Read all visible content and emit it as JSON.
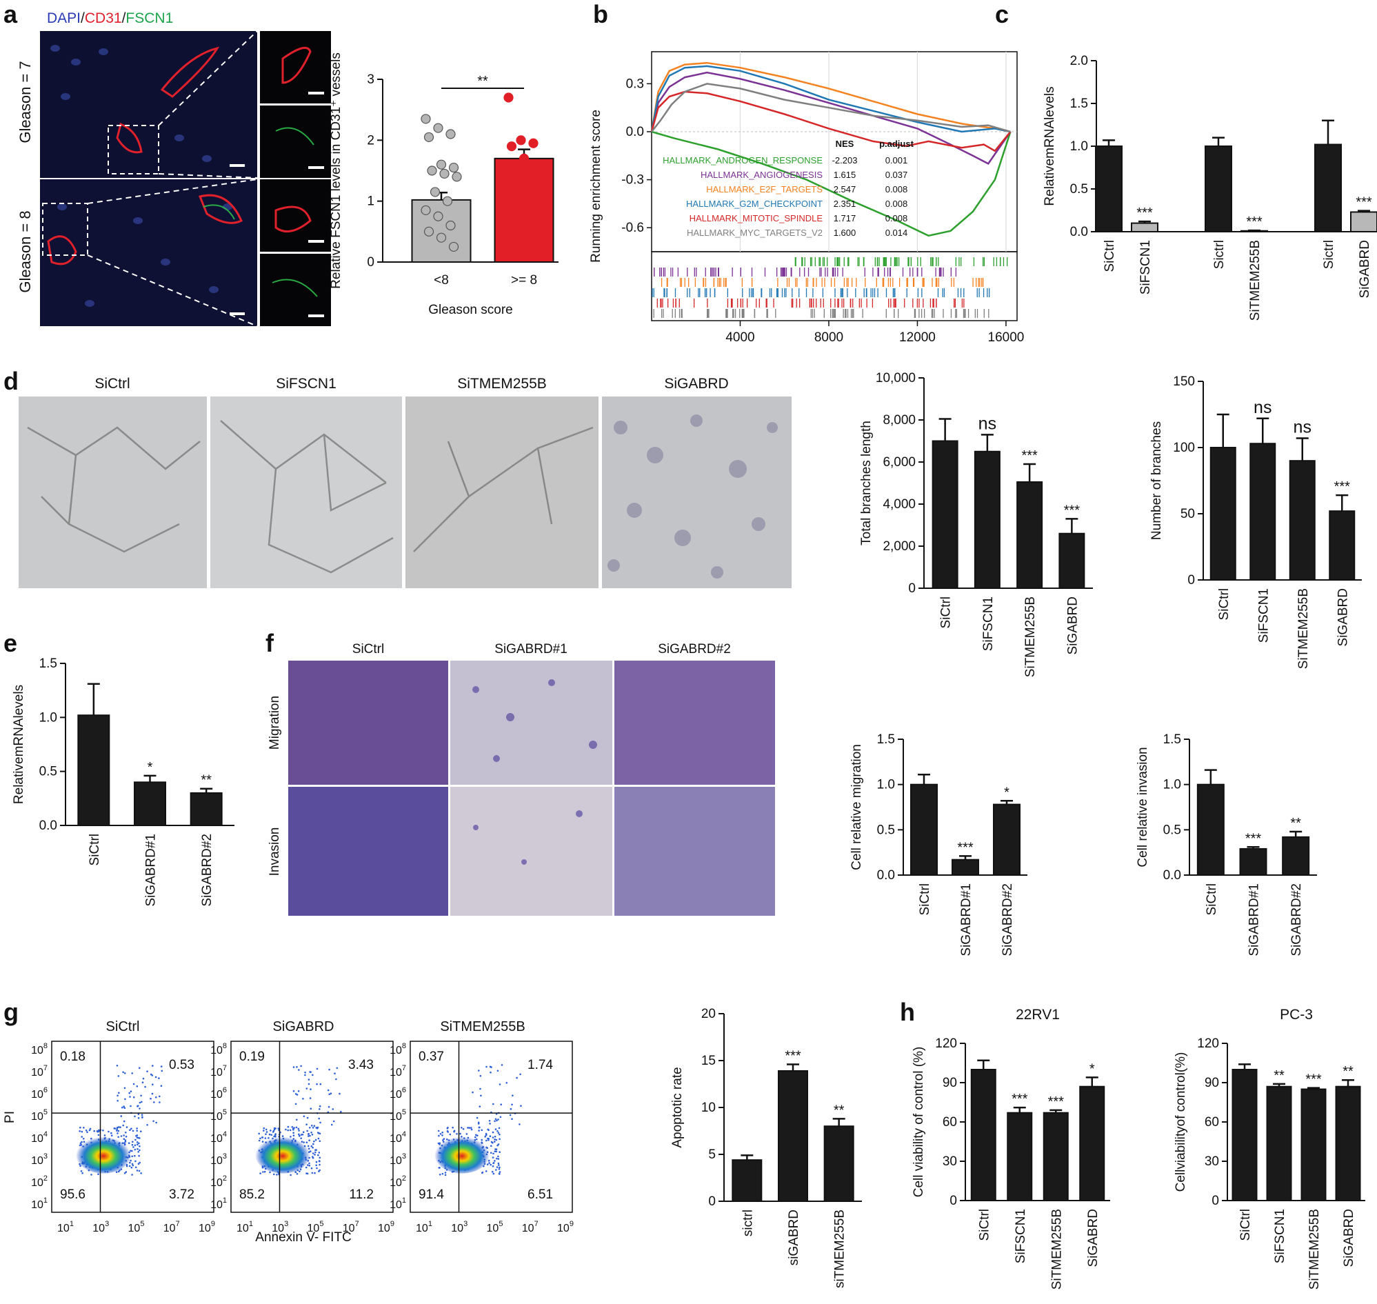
{
  "panel_labels": [
    "a",
    "b",
    "c",
    "d",
    "e",
    "f",
    "g",
    "h"
  ],
  "micro": {
    "stain_legend": [
      {
        "text": "DAPI",
        "color": "#2b3bb8"
      },
      {
        "text": "/",
        "color": "#222222"
      },
      {
        "text": "CD31",
        "color": "#e0202a"
      },
      {
        "text": "/",
        "color": "#222222"
      },
      {
        "text": "FSCN1",
        "color": "#1aa34a"
      }
    ],
    "row_labels": [
      "Gleason = 7",
      "Gleason = 8"
    ],
    "tube_labels": [
      "SiCtrl",
      "SiFSCN1",
      "SiTMEM255B",
      "SiGABRD"
    ],
    "transwell_cols": [
      "SiCtrl",
      "SiGABRD#1",
      "SiGABRD#2"
    ],
    "transwell_rows": [
      "Migration",
      "Invasion"
    ],
    "flow_titles": [
      "SiCtrl",
      "SiGABRD",
      "SiTMEM255B"
    ],
    "flow_quadrants": [
      [
        "0.18",
        "0.53",
        "95.6",
        "3.72"
      ],
      [
        "0.19",
        "3.43",
        "85.2",
        "11.2"
      ],
      [
        "0.37",
        "1.74",
        "91.4",
        "6.51"
      ]
    ],
    "flow_ylabel": "PI",
    "flow_xlabel": "Annexin V- FITC",
    "flow_ticks": [
      "10",
      "1",
      "10",
      "3",
      "10",
      "5",
      "10",
      "7",
      "10",
      "9"
    ]
  },
  "gsea_table": {
    "headers": [
      "NES",
      "p.adjust"
    ],
    "rows": [
      {
        "name": "HALLMARK_ANDROGEN_RESPONSE",
        "nes": "-2.203",
        "p": "0.001",
        "color": "#2ca02c"
      },
      {
        "name": "HALLMARK_ANGIOGENESIS",
        "nes": "1.615",
        "p": "0.037",
        "color": "#7b3294"
      },
      {
        "name": "HALLMARK_E2F_TARGETS",
        "nes": "2.547",
        "p": "0.008",
        "color": "#f58220"
      },
      {
        "name": "HALLMARK_G2M_CHECKPOINT",
        "nes": "2.351",
        "p": "0.008",
        "color": "#1f77b4"
      },
      {
        "name": "HALLMARK_MITOTIC_SPINDLE",
        "nes": "1.717",
        "p": "0.008",
        "color": "#d62728"
      },
      {
        "name": "HALLMARK_MYC_TARGETS_V2",
        "nes": "1.600",
        "p": "0.014",
        "color": "#7f7f7f"
      }
    ]
  },
  "chart_data": [
    {
      "id": "a",
      "type": "bar",
      "categories": [
        "<8",
        ">= 8"
      ],
      "values": [
        1.02,
        1.7
      ],
      "errors": [
        0.12,
        0.15
      ],
      "colors": [
        "#b8b8b8",
        "#e21f26"
      ],
      "points": [
        [
          2.35,
          2.2,
          2.1,
          2.05,
          1.6,
          1.55,
          1.5,
          1.45,
          1.4,
          1.15,
          1.0,
          0.85,
          0.75,
          0.6,
          0.5,
          0.4,
          0.25
        ],
        [
          2.7,
          2.0,
          1.95,
          1.9,
          1.7,
          1.6,
          1.55,
          1.3,
          1.2,
          1.1
        ]
      ],
      "ylabel": "Relative FSCN1 levels in CD31⁺ vessels",
      "xlabel": "Gleason score",
      "ylim": [
        0,
        3
      ],
      "yticks": [
        0,
        1,
        2,
        3
      ],
      "sig": "**"
    },
    {
      "id": "b",
      "type": "line",
      "xlabel": "",
      "ylabel": "Running enrichment score",
      "xlim": [
        0,
        16500
      ],
      "ylim": [
        -0.75,
        0.5
      ],
      "xticks": [
        4000,
        8000,
        12000,
        16000
      ],
      "yticks": [
        -0.6,
        -0.3,
        0.0,
        0.3
      ],
      "series": [
        {
          "name": "HALLMARK_ANDROGEN_RESPONSE",
          "color": "#2ca02c",
          "x": [
            0,
            1000,
            3000,
            5000,
            7000,
            9000,
            11000,
            12500,
            13500,
            14500,
            15500,
            16200
          ],
          "y": [
            0,
            -0.04,
            -0.11,
            -0.2,
            -0.3,
            -0.43,
            -0.55,
            -0.65,
            -0.62,
            -0.5,
            -0.3,
            0
          ]
        },
        {
          "name": "HALLMARK_ANGIOGENESIS",
          "color": "#7b3294",
          "x": [
            0,
            300,
            800,
            1500,
            2500,
            4000,
            6000,
            8000,
            10000,
            12000,
            13500,
            14500,
            15200,
            16200
          ],
          "y": [
            0,
            0.18,
            0.28,
            0.34,
            0.37,
            0.33,
            0.26,
            0.18,
            0.1,
            0.02,
            -0.08,
            -0.15,
            -0.2,
            0
          ]
        },
        {
          "name": "HALLMARK_E2F_TARGETS",
          "color": "#f58220",
          "x": [
            0,
            300,
            800,
            1500,
            2500,
            4000,
            6000,
            8000,
            10000,
            12000,
            14000,
            15500,
            16200
          ],
          "y": [
            0,
            0.25,
            0.38,
            0.42,
            0.43,
            0.4,
            0.34,
            0.27,
            0.19,
            0.11,
            0.05,
            0.02,
            0
          ]
        },
        {
          "name": "HALLMARK_G2M_CHECKPOINT",
          "color": "#1f77b4",
          "x": [
            0,
            300,
            800,
            1500,
            2500,
            4000,
            6000,
            8000,
            10000,
            12000,
            14000,
            15500,
            16200
          ],
          "y": [
            0,
            0.22,
            0.35,
            0.4,
            0.41,
            0.38,
            0.3,
            0.2,
            0.13,
            0.06,
            0.0,
            0.02,
            0
          ]
        },
        {
          "name": "HALLMARK_MITOTIC_SPINDLE",
          "color": "#d62728",
          "x": [
            0,
            300,
            800,
            1500,
            2500,
            4000,
            6000,
            8000,
            10000,
            11500,
            12500,
            14000,
            15000,
            15500,
            16200
          ],
          "y": [
            0,
            0.15,
            0.22,
            0.25,
            0.24,
            0.19,
            0.11,
            0.02,
            -0.06,
            -0.09,
            -0.06,
            -0.1,
            -0.08,
            -0.12,
            0
          ]
        },
        {
          "name": "HALLMARK_MYC_TARGETS_V2",
          "color": "#7f7f7f",
          "x": [
            0,
            400,
            900,
            1500,
            2500,
            4000,
            6000,
            8000,
            10000,
            12000,
            14000,
            15200,
            16200
          ],
          "y": [
            0,
            0.07,
            0.17,
            0.25,
            0.3,
            0.27,
            0.2,
            0.15,
            0.1,
            0.07,
            0.03,
            0.04,
            0
          ]
        }
      ]
    },
    {
      "id": "c",
      "type": "bar",
      "categories": [
        "SiCtrl",
        "SiFSCN1",
        "Sictrl",
        "SiTMEM255B",
        "Sictrl",
        "SiGABRD"
      ],
      "values": [
        1.0,
        0.1,
        1.0,
        0.01,
        1.02,
        0.23
      ],
      "errors": [
        0.07,
        0.02,
        0.1,
        0.005,
        0.28,
        0.015
      ],
      "colors": [
        "#1a1a1a",
        "#b8b8b8",
        "#1a1a1a",
        "#b8b8b8",
        "#1a1a1a",
        "#b8b8b8"
      ],
      "sig": [
        "",
        "***",
        "",
        "***",
        "",
        "***"
      ],
      "ylabel": "RelativemRNAlevels",
      "ylim": [
        0,
        2.0
      ],
      "yticks": [
        0.0,
        0.5,
        1.0,
        1.5,
        2.0
      ]
    },
    {
      "id": "d1",
      "type": "bar",
      "categories": [
        "SiCtrl",
        "SiFSCN1",
        "SiTMEM255B",
        "SiGABRD"
      ],
      "values": [
        7000,
        6500,
        5050,
        2600
      ],
      "errors": [
        1050,
        800,
        850,
        700
      ],
      "sig": [
        "",
        "ns",
        "***",
        "***"
      ],
      "ylabel": "Total branches length",
      "ylim": [
        0,
        10000
      ],
      "yticks": [
        0,
        2000,
        4000,
        6000,
        8000,
        10000
      ]
    },
    {
      "id": "d2",
      "type": "bar",
      "categories": [
        "SiCtrl",
        "SiFSCN1",
        "SiTMEM255B",
        "SiGABRD"
      ],
      "values": [
        100,
        103,
        90,
        52
      ],
      "errors": [
        25,
        19,
        17,
        12
      ],
      "sig": [
        "",
        "ns",
        "ns",
        "***"
      ],
      "ylabel": "Number of branches",
      "ylim": [
        0,
        150
      ],
      "yticks": [
        0,
        50,
        100,
        150
      ]
    },
    {
      "id": "e",
      "type": "bar",
      "categories": [
        "SiCtrl",
        "SiGABRD#1",
        "SiGABRD#2"
      ],
      "values": [
        1.02,
        0.4,
        0.3
      ],
      "errors": [
        0.29,
        0.06,
        0.04
      ],
      "sig": [
        "",
        "*",
        "**"
      ],
      "ylabel": "RelativemRNAlevels",
      "ylim": [
        0,
        1.5
      ],
      "yticks": [
        0.0,
        0.5,
        1.0,
        1.5
      ]
    },
    {
      "id": "f1",
      "type": "bar",
      "categories": [
        "SiCtrl",
        "SiGABRD#1",
        "SiGABRD#2"
      ],
      "values": [
        1.0,
        0.17,
        0.78
      ],
      "errors": [
        0.11,
        0.04,
        0.04
      ],
      "sig": [
        "",
        "***",
        "*"
      ],
      "ylabel": "Cell relative migration",
      "ylim": [
        0,
        1.5
      ],
      "yticks": [
        0.0,
        0.5,
        1.0,
        1.5
      ]
    },
    {
      "id": "f2",
      "type": "bar",
      "categories": [
        "SiCtrl",
        "SiGABRD#1",
        "SiGABRD#2"
      ],
      "values": [
        1.0,
        0.29,
        0.42
      ],
      "errors": [
        0.16,
        0.02,
        0.06
      ],
      "sig": [
        "",
        "***",
        "**"
      ],
      "ylabel": "Cell relative invasion",
      "ylim": [
        0,
        1.5
      ],
      "yticks": [
        0.0,
        0.5,
        1.0,
        1.5
      ]
    },
    {
      "id": "g",
      "type": "bar",
      "categories": [
        "sictrl",
        "siGABRD",
        "siTMEM255B"
      ],
      "values": [
        4.4,
        13.9,
        8.0
      ],
      "errors": [
        0.5,
        0.7,
        0.8
      ],
      "sig": [
        "",
        "***",
        "**"
      ],
      "ylabel": "Apoptotic rate",
      "ylim": [
        0,
        20
      ],
      "yticks": [
        0,
        5,
        10,
        15,
        20
      ]
    },
    {
      "id": "h1",
      "type": "bar",
      "title": "22RV1",
      "categories": [
        "SiCtrl",
        "SiFSCN1",
        "SiTMEM255B",
        "SiGABRD"
      ],
      "values": [
        100,
        67,
        67,
        87
      ],
      "errors": [
        7,
        4,
        2,
        7
      ],
      "sig": [
        "",
        "***",
        "***",
        "*"
      ],
      "ylabel": "Cell viability of control (%)",
      "ylim": [
        0,
        120
      ],
      "yticks": [
        0,
        30,
        60,
        90,
        120
      ]
    },
    {
      "id": "h2",
      "type": "bar",
      "title": "PC-3",
      "categories": [
        "SiCtrl",
        "SiFSCN1",
        "SiTMEM255B",
        "SiGABRD"
      ],
      "values": [
        100,
        87,
        85,
        87
      ],
      "errors": [
        4,
        2,
        1,
        5
      ],
      "sig": [
        "",
        "**",
        "***",
        "**"
      ],
      "ylabel": "Cellviabilityof control(%)",
      "ylim": [
        0,
        120
      ],
      "yticks": [
        0,
        30,
        60,
        90,
        120
      ]
    }
  ]
}
